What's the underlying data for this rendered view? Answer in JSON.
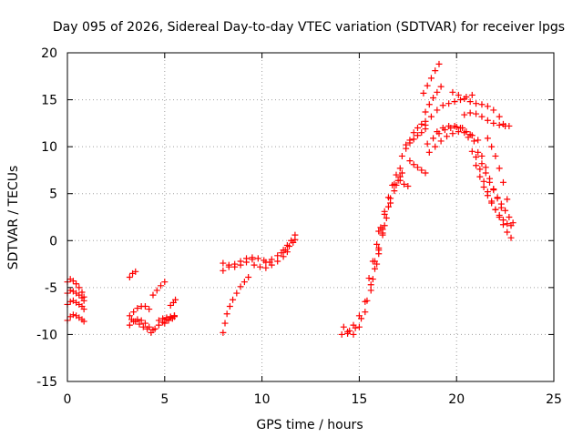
{
  "chart_data": {
    "type": "scatter",
    "title": "Day 095 of 2026, Sidereal Day-to-day VTEC variation (SDTVAR) for receiver lpgs",
    "xlabel": "GPS time / hours",
    "ylabel": "SDTVAR / TECUs",
    "xlim": [
      0,
      25
    ],
    "ylim": [
      -15,
      20
    ],
    "xticks": [
      0,
      5,
      10,
      15,
      20,
      25
    ],
    "yticks": [
      -15,
      -10,
      -5,
      0,
      5,
      10,
      15,
      20
    ],
    "grid": true,
    "marker": "plus",
    "color": "#ff0000",
    "series": [
      {
        "name": "t1",
        "x": [
          0.0,
          0.15,
          0.3,
          0.45,
          0.6,
          0.75,
          0.85
        ],
        "y": [
          -4.4,
          -4.1,
          -4.3,
          -4.6,
          -5.0,
          -5.5,
          -6.0
        ]
      },
      {
        "name": "t2",
        "x": [
          0.0,
          0.15,
          0.3,
          0.45,
          0.6,
          0.75,
          0.85
        ],
        "y": [
          -5.6,
          -5.3,
          -5.4,
          -5.6,
          -5.8,
          -6.1,
          -6.4
        ]
      },
      {
        "name": "t3",
        "x": [
          0.0,
          0.15,
          0.3,
          0.45,
          0.6,
          0.75,
          0.85
        ],
        "y": [
          -6.8,
          -6.5,
          -6.4,
          -6.6,
          -6.8,
          -7.0,
          -7.3
        ]
      },
      {
        "name": "t4",
        "x": [
          0.0,
          0.15,
          0.3,
          0.45,
          0.6,
          0.75,
          0.85
        ],
        "y": [
          -8.5,
          -8.1,
          -7.9,
          -8.0,
          -8.2,
          -8.4,
          -8.6
        ]
      },
      {
        "name": "t5",
        "x": [
          3.2,
          3.35,
          3.5
        ],
        "y": [
          -3.9,
          -3.5,
          -3.3
        ]
      },
      {
        "name": "t6",
        "x": [
          3.2,
          3.4,
          3.6,
          3.8,
          4.0,
          4.2
        ],
        "y": [
          -8.0,
          -7.6,
          -7.2,
          -7.0,
          -7.0,
          -7.3
        ]
      },
      {
        "name": "t7",
        "x": [
          3.2,
          3.4,
          3.6,
          3.8,
          4.0,
          4.2,
          4.4
        ],
        "y": [
          -9.0,
          -8.6,
          -8.4,
          -8.5,
          -8.8,
          -9.2,
          -9.5
        ]
      },
      {
        "name": "t8",
        "x": [
          3.3,
          3.5,
          3.7,
          3.9,
          4.1
        ],
        "y": [
          -8.4,
          -8.6,
          -8.9,
          -9.2,
          -9.4
        ]
      },
      {
        "name": "t9",
        "x": [
          4.4,
          4.6,
          4.8,
          5.0
        ],
        "y": [
          -5.8,
          -5.3,
          -4.8,
          -4.4
        ]
      },
      {
        "name": "t10",
        "x": [
          4.3,
          4.5,
          4.7,
          4.9,
          5.1,
          5.3,
          5.5
        ],
        "y": [
          -9.8,
          -9.4,
          -9.0,
          -8.7,
          -8.4,
          -8.2,
          -8.0
        ]
      },
      {
        "name": "t11",
        "x": [
          4.7,
          4.9,
          5.1,
          5.3,
          5.5
        ],
        "y": [
          -8.5,
          -8.3,
          -8.2,
          -8.1,
          -8.0
        ]
      },
      {
        "name": "t12",
        "x": [
          5.0,
          5.2,
          5.4,
          5.5
        ],
        "y": [
          -8.8,
          -8.5,
          -8.3,
          -8.1
        ]
      },
      {
        "name": "t13",
        "x": [
          5.3,
          5.45,
          5.55
        ],
        "y": [
          -6.9,
          -6.6,
          -6.3
        ]
      },
      {
        "name": "t14",
        "x": [
          8.0,
          8.1,
          8.2,
          8.35,
          8.5,
          8.7,
          8.9,
          9.1,
          9.3
        ],
        "y": [
          -9.8,
          -8.8,
          -7.8,
          -7.0,
          -6.3,
          -5.6,
          -4.9,
          -4.4,
          -3.9
        ]
      },
      {
        "name": "t15",
        "x": [
          8.0,
          8.3,
          8.6,
          8.9,
          9.2,
          9.5,
          9.8,
          10.1,
          10.4
        ],
        "y": [
          -3.2,
          -2.8,
          -2.5,
          -2.2,
          -1.9,
          -1.8,
          -1.9,
          -2.1,
          -2.3
        ]
      },
      {
        "name": "t16",
        "x": [
          8.0,
          8.3,
          8.6,
          8.9,
          9.2,
          9.5
        ],
        "y": [
          -2.4,
          -2.6,
          -2.8,
          -2.6,
          -2.3,
          -2.0
        ]
      },
      {
        "name": "t17",
        "x": [
          9.6,
          9.9,
          10.2,
          10.5,
          10.8,
          11.1,
          11.3
        ],
        "y": [
          -2.6,
          -2.8,
          -2.9,
          -2.6,
          -2.2,
          -1.7,
          -1.2
        ]
      },
      {
        "name": "t18",
        "x": [
          10.2,
          10.5,
          10.8,
          11.1,
          11.3,
          11.5,
          11.7
        ],
        "y": [
          -2.3,
          -2.0,
          -1.6,
          -1.0,
          -0.5,
          0.0,
          0.6
        ]
      },
      {
        "name": "t19",
        "x": [
          11.0,
          11.2,
          11.4,
          11.6,
          11.7
        ],
        "y": [
          -1.3,
          -1.0,
          -0.6,
          -0.2,
          0.1
        ]
      },
      {
        "name": "t20",
        "x": [
          14.1,
          14.4,
          14.7,
          15.0,
          15.3,
          15.6,
          15.8,
          16.0,
          16.2
        ],
        "y": [
          -10.0,
          -9.7,
          -9.0,
          -8.0,
          -6.5,
          -4.7,
          -3.0,
          -1.0,
          1.2
        ]
      },
      {
        "name": "t21",
        "x": [
          14.2,
          14.5,
          14.8,
          15.1,
          15.4,
          15.7,
          16.0,
          16.3
        ],
        "y": [
          -9.2,
          -9.6,
          -9.3,
          -8.3,
          -6.4,
          -4.1,
          -1.4,
          1.6
        ]
      },
      {
        "name": "t22",
        "x": [
          14.4,
          14.7,
          15.0,
          15.3,
          15.6,
          15.9,
          16.2,
          16.5,
          16.8
        ],
        "y": [
          -9.9,
          -10.0,
          -9.2,
          -7.6,
          -5.3,
          -2.5,
          0.6,
          3.6,
          6.0
        ]
      },
      {
        "name": "t23",
        "x": [
          15.5,
          15.7,
          15.9,
          16.1,
          16.3,
          16.5,
          16.7,
          16.9,
          17.1
        ],
        "y": [
          -4.0,
          -2.2,
          -0.4,
          1.4,
          3.1,
          4.6,
          5.9,
          7.0,
          7.7
        ]
      },
      {
        "name": "t24",
        "x": [
          15.8,
          16.0,
          16.2,
          16.4,
          16.6,
          16.8,
          17.0,
          17.2
        ],
        "y": [
          -2.2,
          -0.8,
          0.8,
          2.4,
          4.0,
          5.3,
          6.4,
          7.2
        ]
      },
      {
        "name": "t25",
        "x": [
          16.0,
          16.3,
          16.6,
          16.9,
          17.1
        ],
        "y": [
          1.0,
          2.8,
          4.5,
          5.9,
          6.8
        ]
      },
      {
        "name": "t26",
        "x": [
          17.1,
          17.3,
          17.5
        ],
        "y": [
          6.4,
          6.0,
          5.8
        ]
      },
      {
        "name": "t27",
        "x": [
          17.2,
          17.4,
          17.6,
          17.8,
          18.0,
          18.2,
          18.4
        ],
        "y": [
          9.0,
          9.8,
          10.7,
          11.5,
          12.0,
          12.4,
          12.7
        ]
      },
      {
        "name": "t28",
        "x": [
          17.4,
          17.6,
          17.8,
          18.0,
          18.2,
          18.4
        ],
        "y": [
          10.2,
          10.4,
          10.8,
          11.2,
          11.5,
          11.9
        ]
      },
      {
        "name": "t29",
        "x": [
          17.6,
          17.8,
          18.0,
          18.2,
          18.4
        ],
        "y": [
          8.5,
          8.1,
          7.8,
          7.5,
          7.2
        ]
      },
      {
        "name": "t30",
        "x": [
          18.3,
          18.5,
          18.7,
          18.9,
          19.1
        ],
        "y": [
          15.7,
          16.5,
          17.3,
          18.1,
          18.8
        ]
      },
      {
        "name": "t31",
        "x": [
          18.4,
          18.6,
          18.8,
          19.0,
          19.2
        ],
        "y": [
          13.7,
          14.5,
          15.2,
          15.8,
          16.4
        ]
      },
      {
        "name": "t32",
        "x": [
          18.4,
          18.7,
          19.0,
          19.3,
          19.6,
          19.9,
          20.2,
          20.5,
          20.8
        ],
        "y": [
          12.3,
          13.2,
          13.9,
          14.4,
          14.6,
          14.8,
          15.0,
          15.3,
          15.5
        ]
      },
      {
        "name": "t33",
        "x": [
          18.5,
          18.8,
          19.1,
          19.4,
          19.7,
          20.0,
          20.3
        ],
        "y": [
          10.3,
          10.9,
          11.4,
          11.8,
          12.0,
          12.1,
          12.0
        ]
      },
      {
        "name": "t34",
        "x": [
          18.6,
          18.9,
          19.2,
          19.5,
          19.8,
          20.1,
          20.4,
          20.7
        ],
        "y": [
          9.4,
          10.0,
          10.6,
          11.1,
          11.4,
          11.6,
          11.5,
          11.3
        ]
      },
      {
        "name": "t35",
        "x": [
          19.0,
          19.3,
          19.6,
          19.9,
          20.2,
          20.5,
          20.8,
          21.1
        ],
        "y": [
          11.6,
          12.0,
          12.2,
          12.2,
          12.0,
          11.6,
          11.2,
          10.7
        ]
      },
      {
        "name": "t36",
        "x": [
          19.8,
          20.1,
          20.4,
          20.7,
          21.0,
          21.3,
          21.6,
          21.9,
          22.2,
          22.4
        ],
        "y": [
          15.8,
          15.5,
          15.1,
          14.8,
          14.6,
          14.5,
          14.3,
          13.9,
          13.2,
          12.4
        ]
      },
      {
        "name": "t37",
        "x": [
          20.4,
          20.7,
          21.0,
          21.3,
          21.6,
          21.9,
          22.2,
          22.5,
          22.7
        ],
        "y": [
          13.4,
          13.6,
          13.5,
          13.2,
          12.8,
          12.5,
          12.3,
          12.2,
          12.2
        ]
      },
      {
        "name": "t38",
        "x": [
          20.6,
          20.8,
          21.0,
          21.2,
          21.4,
          21.6,
          21.8,
          22.0,
          22.2,
          22.4,
          22.6,
          22.8
        ],
        "y": [
          11.0,
          9.5,
          8.0,
          6.8,
          5.7,
          4.8,
          4.0,
          3.3,
          2.7,
          2.2,
          1.8,
          1.6
        ]
      },
      {
        "name": "t39",
        "x": [
          20.9,
          21.1,
          21.3,
          21.5,
          21.7,
          21.9,
          22.1,
          22.3,
          22.5,
          22.7,
          22.9
        ],
        "y": [
          10.6,
          9.4,
          8.2,
          7.2,
          6.2,
          5.4,
          4.6,
          3.9,
          3.2,
          2.5,
          1.9
        ]
      },
      {
        "name": "t40",
        "x": [
          21.0,
          21.2,
          21.4,
          21.6,
          21.8,
          22.0,
          22.2,
          22.4,
          22.6,
          22.8
        ],
        "y": [
          8.9,
          7.6,
          6.3,
          5.2,
          4.2,
          3.3,
          2.5,
          1.7,
          0.9,
          0.3
        ]
      },
      {
        "name": "t41",
        "x": [
          21.3,
          21.5,
          21.7,
          21.9,
          22.1,
          22.3
        ],
        "y": [
          9.0,
          7.8,
          6.6,
          5.5,
          4.5,
          3.5
        ]
      },
      {
        "name": "t42",
        "x": [
          21.6,
          21.8,
          22.0,
          22.2,
          22.4,
          22.6
        ],
        "y": [
          10.9,
          10.0,
          9.0,
          7.7,
          6.2,
          4.4
        ]
      }
    ]
  }
}
